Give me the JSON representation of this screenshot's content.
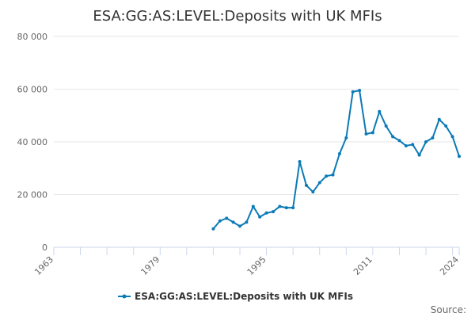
{
  "chart_data": {
    "type": "line",
    "title": "ESA:GG:AS:LEVEL:Deposits with UK MFIs",
    "xlabel": "",
    "ylabel": "",
    "xlim": [
      1963,
      2024
    ],
    "ylim": [
      0,
      80000
    ],
    "x_ticks": [
      1963,
      1979,
      1995,
      2011,
      2024
    ],
    "y_ticks": [
      0,
      20000,
      40000,
      60000,
      80000
    ],
    "y_tick_labels": [
      "0",
      "20 000",
      "40 000",
      "60 000",
      "80 000"
    ],
    "grid": "horizontal",
    "legend_position": "bottom",
    "color": "#0b7ab6",
    "series": [
      {
        "name": "ESA:GG:AS:LEVEL:Deposits with UK MFIs",
        "x": [
          1987,
          1988,
          1989,
          1990,
          1991,
          1992,
          1993,
          1994,
          1995,
          1996,
          1997,
          1998,
          1999,
          2000,
          2001,
          2002,
          2003,
          2004,
          2005,
          2006,
          2007,
          2008,
          2009,
          2010,
          2011,
          2012,
          2013,
          2014,
          2015,
          2016,
          2017,
          2018,
          2019,
          2020,
          2021,
          2022,
          2023,
          2024
        ],
        "values": [
          7000,
          10000,
          11000,
          9500,
          8000,
          9500,
          15500,
          11500,
          13000,
          13500,
          15500,
          15000,
          15000,
          32500,
          23500,
          21000,
          24500,
          27000,
          27500,
          35500,
          41500,
          59000,
          59500,
          43000,
          43500,
          51500,
          46000,
          42000,
          40500,
          38500,
          39000,
          35000,
          40000,
          41500,
          48500,
          46000,
          42000,
          34500
        ]
      }
    ]
  },
  "legend": {
    "label": "ESA:GG:AS:LEVEL:Deposits with UK MFIs"
  },
  "credits": {
    "text": "Source:"
  }
}
